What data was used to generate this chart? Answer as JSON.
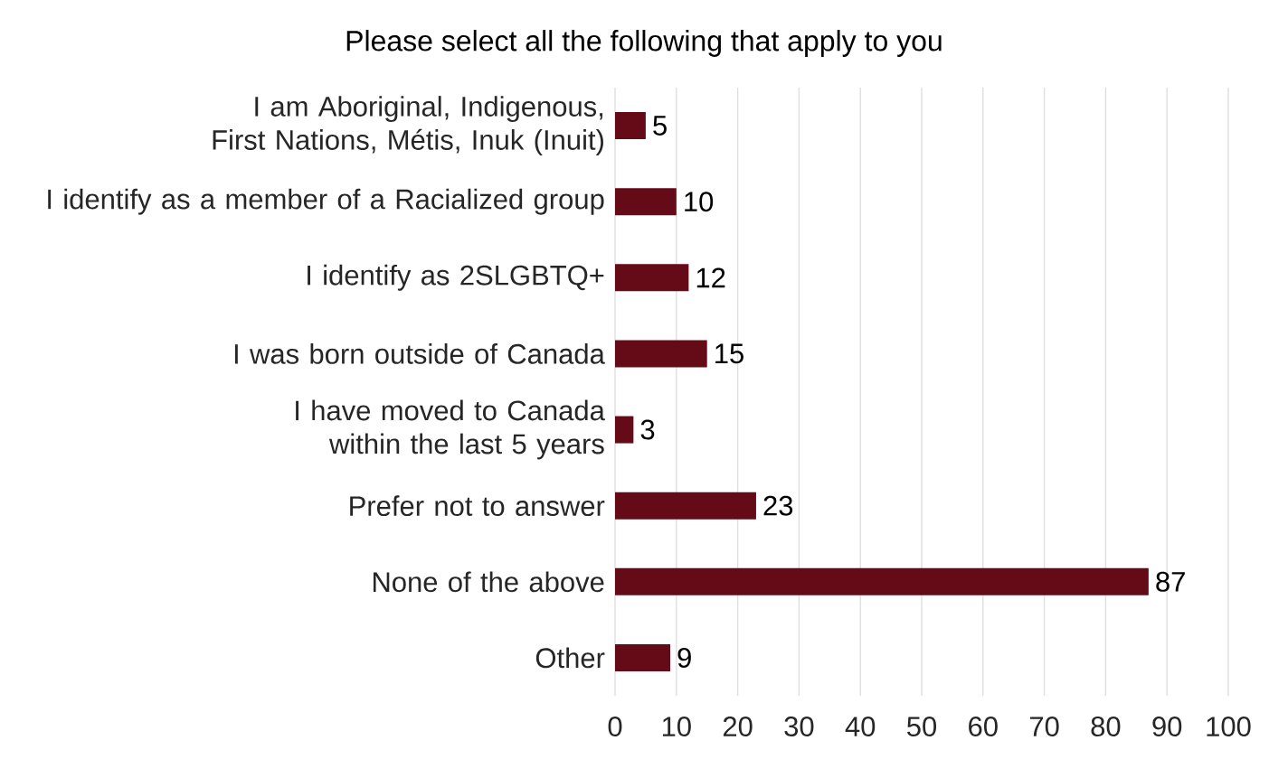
{
  "chart_data": {
    "type": "bar",
    "orientation": "horizontal",
    "title": "Please select all the following that apply to you",
    "categories": [
      "I am Aboriginal, Indigenous, First Nations, Métis, Inuk (Inuit)",
      "I identify as a member of a Racialized group",
      "I identify as 2SLGBTQ+",
      "I was born outside of Canada",
      "I have moved to Canada within the last 5 years",
      "Prefer not to answer",
      "None of the above",
      "Other"
    ],
    "values": [
      5,
      10,
      12,
      15,
      3,
      23,
      87,
      9
    ],
    "color": "#650a17",
    "xlim": [
      0,
      100
    ],
    "xticks": [
      0,
      10,
      20,
      30,
      40,
      50,
      60,
      70,
      80,
      90,
      100
    ],
    "grid": "x",
    "data_labels": true
  }
}
